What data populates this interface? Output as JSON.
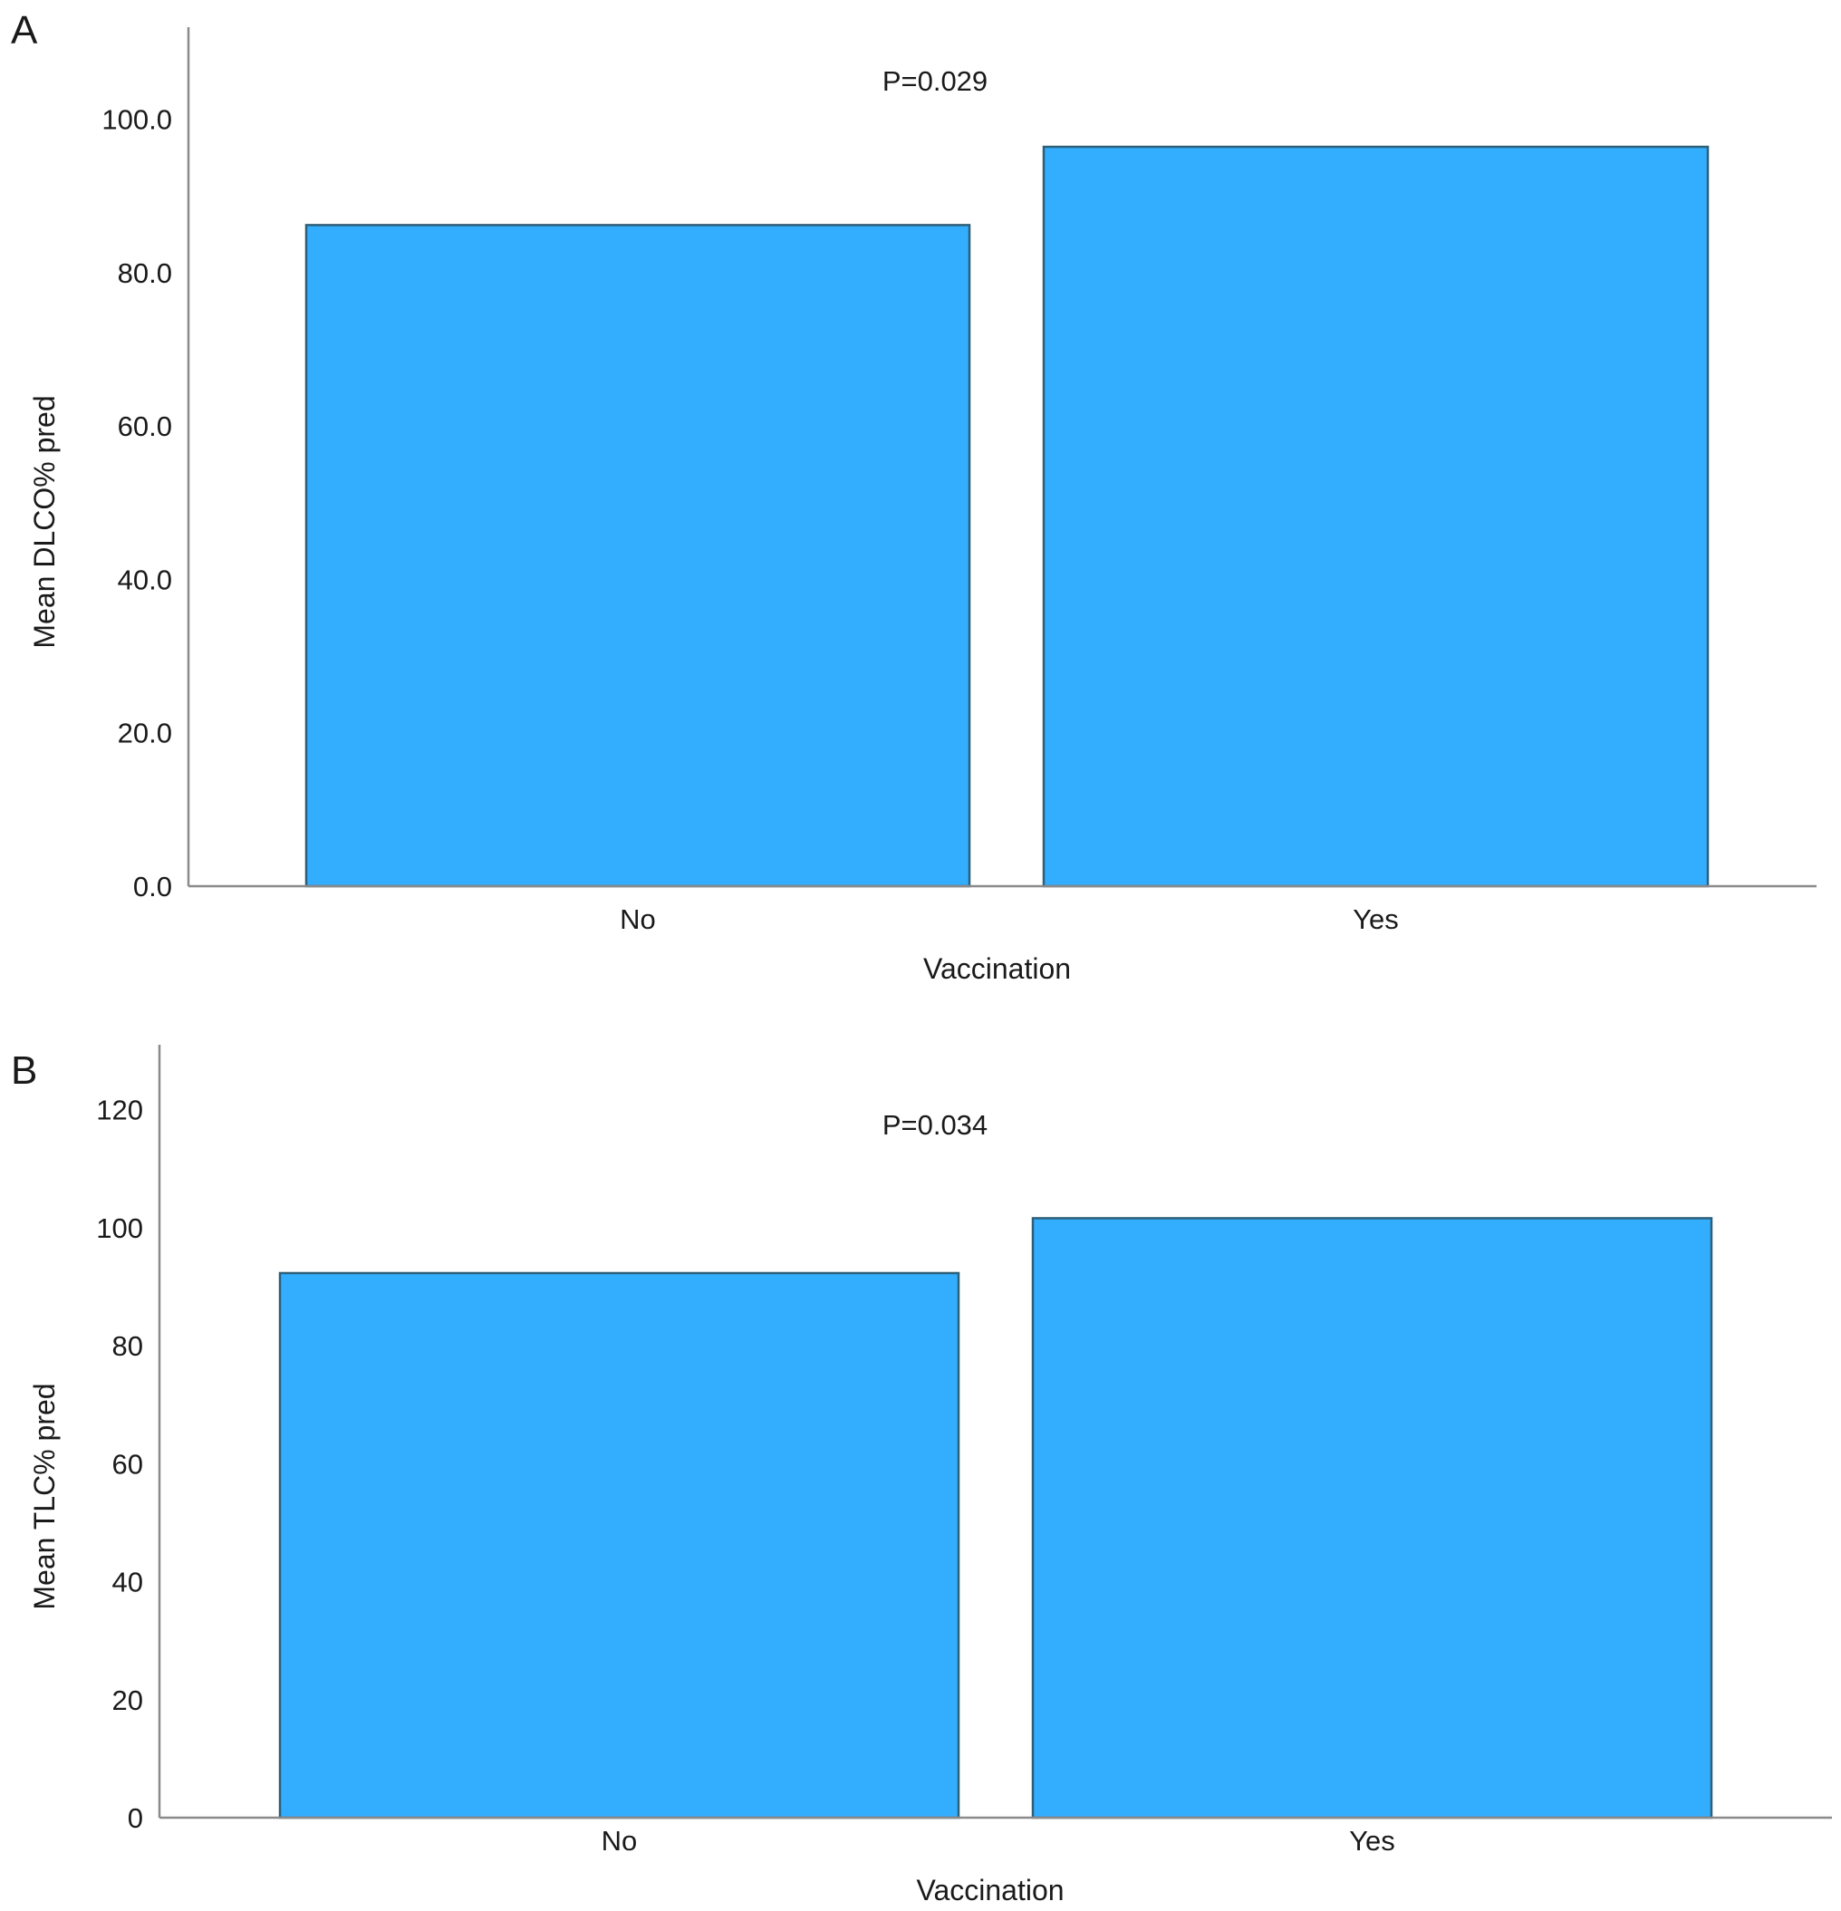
{
  "chart_data": [
    {
      "type": "bar",
      "panel": "A",
      "categories": [
        "No",
        "Yes"
      ],
      "values": [
        86.2,
        96.4
      ],
      "ylim": [
        0,
        112
      ],
      "yticks": [
        0,
        20,
        40,
        60,
        80,
        100
      ],
      "ytick_labels": [
        "0.0",
        "20.0",
        "40.0",
        "60.0",
        "80.0",
        "100.0"
      ],
      "xlabel": "Vaccination",
      "ylabel": "Mean DLCO% pred",
      "annotation": "P=0.029",
      "bar_color": "#33AEFF",
      "grid": false,
      "legend": "none"
    },
    {
      "type": "bar",
      "panel": "B",
      "categories": [
        "No",
        "Yes"
      ],
      "values": [
        92.3,
        101.6
      ],
      "ylim": [
        0,
        131
      ],
      "yticks": [
        0,
        20,
        40,
        60,
        80,
        100,
        120
      ],
      "ytick_labels": [
        "0",
        "20",
        "40",
        "60",
        "80",
        "100",
        "120"
      ],
      "xlabel": "Vaccination",
      "ylabel": "Mean TLC% pred",
      "annotation": "P=0.034",
      "bar_color": "#33AEFF",
      "grid": false,
      "legend": "none"
    }
  ]
}
